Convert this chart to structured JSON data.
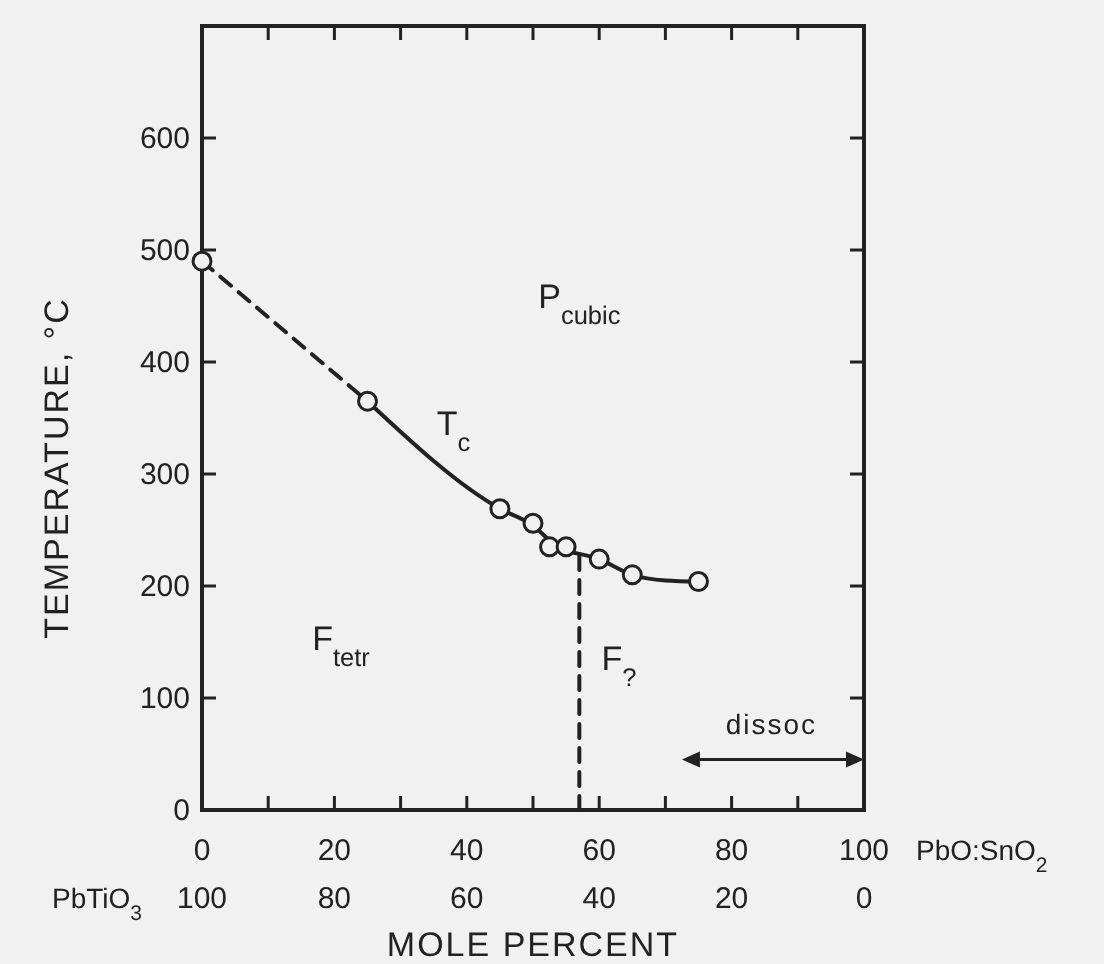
{
  "chart_data": {
    "type": "scatter",
    "xlabel": "MOLE PERCENT",
    "ylabel": "TEMPERATURE, °C",
    "x2label": "PbTiO$_{3}$",
    "xlim": [
      0,
      100
    ],
    "xticks": [
      0,
      {
        "value": 10,
        "label": null
      },
      20,
      {
        "value": 30,
        "label": null
      },
      40,
      {
        "value": 50,
        "label": null
      },
      60,
      {
        "value": 70,
        "label": null
      },
      80,
      {
        "value": 90,
        "label": null
      },
      100
    ],
    "x2lim": [
      100,
      0
    ],
    "x2ticks": [
      100,
      80,
      60,
      40,
      20,
      0
    ],
    "ylim": [
      0,
      700
    ],
    "yticks": [
      0,
      100,
      200,
      300,
      400,
      500,
      600,
      {
        "value": 700,
        "label": null
      }
    ],
    "grid": false,
    "series": [
      {
        "color": "#222222",
        "marker": "circle",
        "x": [
          0,
          25,
          45,
          50,
          52.5,
          55,
          60,
          65,
          75
        ],
        "values": [
          490,
          365,
          269,
          256,
          235,
          235,
          224,
          210,
          204
        ]
      },
      {
        "type": "line",
        "color": "#222222",
        "marker": "none",
        "line_style": "dashed",
        "x": [
          0,
          25
        ],
        "values": [
          490,
          365
        ]
      },
      {
        "type": "line",
        "color": "#222222",
        "marker": "none",
        "line_style": "solid",
        "x": [
          25,
          45,
          50,
          53.5,
          60,
          65,
          70,
          75
        ],
        "values": [
          365,
          269,
          254,
          236,
          224,
          210,
          205,
          204
        ]
      },
      {
        "type": "line",
        "color": "#222222",
        "marker": "none",
        "line_style": "dashed",
        "x": [
          57,
          57
        ],
        "values": [
          0,
          228
        ]
      }
    ],
    "annotations": [
      "P$_{cubic}$",
      "T$_{c}$",
      "F$_{tetr}$",
      "F$_{?}$",
      "dissoc",
      "PbO:SnO$_{2}$"
    ]
  }
}
